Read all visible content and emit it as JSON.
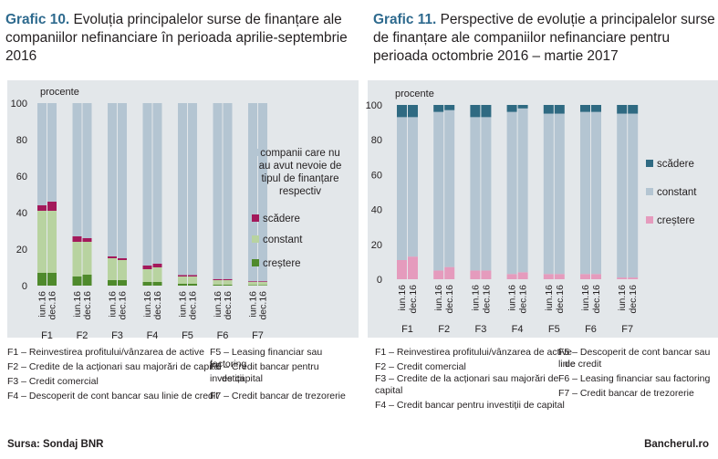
{
  "chart_data": [
    {
      "type": "bar",
      "stacked": true,
      "title_num": "Grafic 10.",
      "title": "Evoluția principalelor surse de finanțare ale companiilor nefinanciare în perioada aprilie-septembrie 2016",
      "ylabel": "procente",
      "ylim": [
        0,
        100
      ],
      "yticks": [
        "0",
        "20",
        "40",
        "60",
        "80",
        "100"
      ],
      "groups": [
        "F1",
        "F2",
        "F3",
        "F4",
        "F5",
        "F6",
        "F7"
      ],
      "bar_labels": [
        "iun.16",
        "dec.16"
      ],
      "series": [
        {
          "name": "creștere",
          "color": "#4f8a2c",
          "values": [
            7,
            7,
            5,
            6,
            3,
            3,
            2,
            2,
            1,
            1,
            0.5,
            0.5,
            0.3,
            0.3
          ]
        },
        {
          "name": "constant",
          "color": "#b8d3a0",
          "values": [
            34,
            34,
            19,
            18,
            12,
            11,
            7,
            8,
            4,
            4,
            2.5,
            2.5,
            1.7,
            1.7
          ]
        },
        {
          "name": "scădere",
          "color": "#a3195b",
          "values": [
            3,
            5,
            3,
            2,
            1,
            1,
            2,
            2,
            0.8,
            0.8,
            0.6,
            0.6,
            0.4,
            0.4
          ]
        },
        {
          "name": "companii care nu au avut nevoie de tipul de finanțare respectiv",
          "color": "#b4c5d2",
          "values": [
            56,
            54,
            73,
            74,
            84,
            85,
            89,
            88,
            94.2,
            94.2,
            96.4,
            96.4,
            97.6,
            97.6
          ]
        }
      ],
      "legend_order": [
        3,
        2,
        1,
        0
      ],
      "legend_lines": [
        [
          "companii care nu",
          "au avut nevoie de",
          "tipul de finanțare",
          "respectiv"
        ],
        [
          "scădere"
        ],
        [
          "constant"
        ],
        [
          "creștere"
        ]
      ],
      "notes": [
        "F1 – Reinvestirea profitului/vânzarea de active",
        "F2 – Credite de la acționari sau majorări de capital",
        "F3 – Credit comercial",
        "F4 – Descoperit de cont bancar sau linie de credit",
        "F5 – Leasing financiar sau factoring",
        "F6 – Credit bancar pentru investiții",
        "de capital",
        "F7 – Credit bancar de trezorerie"
      ]
    },
    {
      "type": "bar",
      "stacked": true,
      "title_num": "Grafic 11.",
      "title": "Perspective de evoluție a principalelor surse de finanțare ale companiilor nefinanciare pentru perioada octombrie 2016 – martie 2017",
      "ylabel": "procente",
      "ylim": [
        0,
        100
      ],
      "yticks": [
        "0",
        "20",
        "40",
        "60",
        "80",
        "100"
      ],
      "groups": [
        "F1",
        "F2",
        "F3",
        "F4",
        "F5",
        "F6",
        "F7"
      ],
      "bar_labels": [
        "iun.16",
        "dec.16"
      ],
      "series": [
        {
          "name": "creștere",
          "color": "#e59bbd",
          "values": [
            11,
            13,
            5,
            7,
            5,
            5,
            3,
            4,
            3,
            3,
            3,
            3,
            1,
            1
          ]
        },
        {
          "name": "constant",
          "color": "#b4c5d2",
          "values": [
            82,
            80,
            91,
            90,
            88,
            88,
            93,
            94,
            92,
            92,
            93,
            93,
            94,
            94
          ]
        },
        {
          "name": "scădere",
          "color": "#2f6a82",
          "values": [
            7,
            7,
            4,
            3,
            7,
            7,
            4,
            2,
            5,
            5,
            4,
            4,
            5,
            5
          ]
        }
      ],
      "legend_order": [
        2,
        1,
        0
      ],
      "legend_lines": [
        [
          "scădere"
        ],
        [
          "constant"
        ],
        [
          "creștere"
        ]
      ],
      "notes": [
        "F1 – Reinvestirea profitului/vânzarea de active",
        "F2 – Credit comercial",
        "F3 – Credite de la acționari sau majorări de",
        "capital",
        "F4 – Credit bancar pentru investiții de capital",
        "F5 – Descoperit de cont bancar sau linie",
        "de credit",
        "F6 – Leasing financiar sau factoring",
        "F7 – Credit bancar de trezorerie"
      ]
    }
  ],
  "footer": {
    "source": "Sursa: Sondaj BNR",
    "brand": "Bancherul.ro"
  }
}
